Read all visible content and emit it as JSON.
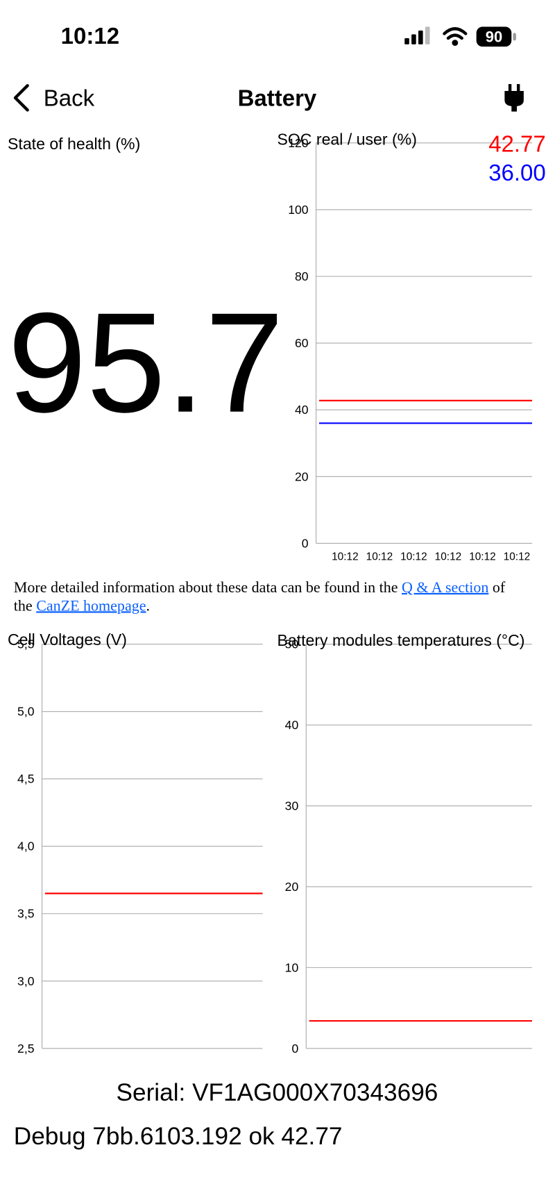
{
  "status_bar": {
    "time": "10:12",
    "battery": "90"
  },
  "nav": {
    "back": "Back",
    "title": "Battery"
  },
  "soh": {
    "label": "State of health (%)",
    "value": "95.7"
  },
  "soc_chart": {
    "type": "line",
    "title": "SOC real / user (%)",
    "categories": [
      "10:12",
      "10:12",
      "10:12",
      "10:12",
      "10:12",
      "10:12"
    ],
    "series": [
      {
        "color": "#ff0000",
        "values": [
          42.77,
          42.77,
          42.77,
          42.77,
          42.77,
          42.77
        ],
        "readout": "42.77"
      },
      {
        "color": "#0000ff",
        "values": [
          36,
          36,
          36,
          36,
          36,
          36
        ],
        "readout": "36.00"
      }
    ],
    "ylim": [
      0,
      120
    ],
    "yticks": [
      0,
      20,
      40,
      60,
      80,
      100,
      120
    ],
    "grid": true
  },
  "info": {
    "before": "More detailed information about these data can be found in the ",
    "link1": "Q & A section",
    "middle": " of the ",
    "link2": "CanZE homepage",
    "after": "."
  },
  "cell_chart": {
    "type": "line",
    "title": "Cell Voltages (V)",
    "series": [
      {
        "color": "#ff0000",
        "values": [
          3.65,
          3.65
        ]
      }
    ],
    "ylim": [
      2.5,
      5.5
    ],
    "yticks": [
      {
        "value": 2.5,
        "label": "2,5"
      },
      {
        "value": 3,
        "label": "3,0"
      },
      {
        "value": 3.5,
        "label": "3,5"
      },
      {
        "value": 4,
        "label": "4,0"
      },
      {
        "value": 4.5,
        "label": "4,5"
      },
      {
        "value": 5,
        "label": "5,0"
      },
      {
        "value": 5.5,
        "label": "5,5"
      }
    ],
    "grid": true
  },
  "temp_chart": {
    "type": "line",
    "title": "Battery modules temperatures (°C)",
    "series": [
      {
        "color": "#ff0000",
        "values": [
          3.4,
          3.4
        ]
      }
    ],
    "ylim": [
      0,
      50
    ],
    "yticks": [
      0,
      10,
      20,
      30,
      40,
      50
    ],
    "grid": true
  },
  "footer": {
    "serial": "Serial: VF1AG000X70343696",
    "debug": "Debug 7bb.6103.192 ok 42.77"
  }
}
